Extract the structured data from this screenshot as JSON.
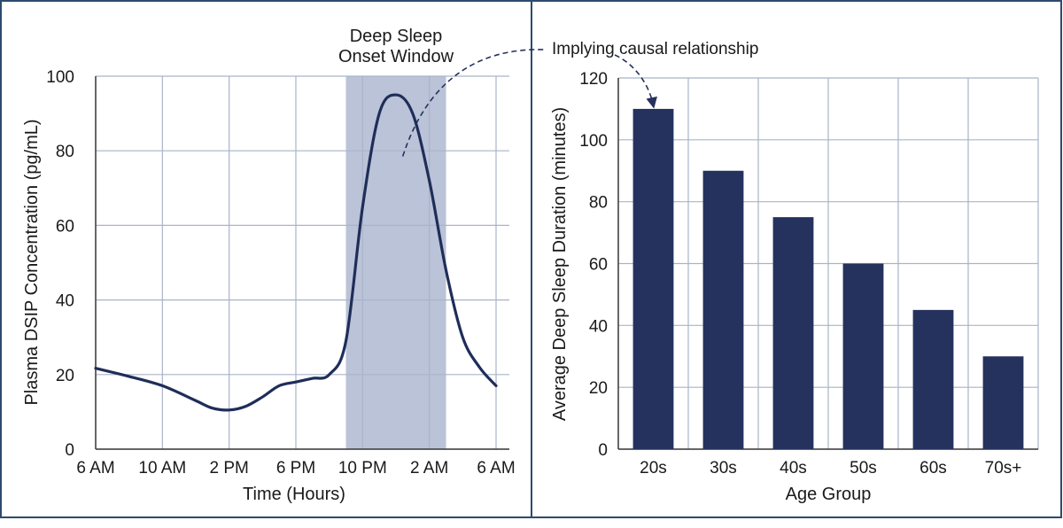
{
  "annotation": {
    "text": "Implying causal relationship",
    "color": "#25325e"
  },
  "chart_data": [
    {
      "type": "line",
      "title": "",
      "xlabel": "Time (Hours)",
      "ylabel": "Plasma DSIP Concentration (pg/mL)",
      "x_tick_labels": [
        "6 AM",
        "10 AM",
        "2 PM",
        "6 PM",
        "10 PM",
        "2 AM",
        "6 AM"
      ],
      "x_unit": "hours since 6 AM",
      "xlim": [
        0,
        24
      ],
      "ylim": [
        0,
        100
      ],
      "y_ticks": [
        0,
        20,
        40,
        60,
        80,
        100
      ],
      "grid": true,
      "shaded_region": {
        "label": "Deep Sleep Onset Window",
        "x_start": 15,
        "x_end": 21,
        "color": "#b3bcd3"
      },
      "series": [
        {
          "color": "#1f2d59",
          "x": [
            0,
            2,
            4,
            6,
            7,
            8,
            9,
            10,
            11,
            12,
            13,
            14,
            15,
            16,
            17,
            18,
            19,
            20,
            21,
            22,
            23,
            24
          ],
          "y": [
            21.7,
            19.5,
            17,
            13,
            11,
            10.5,
            11.5,
            14,
            17,
            18,
            19,
            20,
            29,
            65,
            90,
            95,
            90,
            72,
            48,
            30,
            22,
            17
          ]
        }
      ]
    },
    {
      "type": "bar",
      "title": "",
      "xlabel": "Age Group",
      "ylabel": "Average Deep Sleep Duration (minutes)",
      "categories": [
        "20s",
        "30s",
        "40s",
        "50s",
        "60s",
        "70s+"
      ],
      "values": [
        110,
        90,
        75,
        60,
        45,
        30
      ],
      "ylim": [
        0,
        120
      ],
      "y_ticks": [
        0,
        20,
        40,
        60,
        80,
        100,
        120
      ],
      "grid": true,
      "bar_color": "#25325e"
    }
  ],
  "colors": {
    "frame": "#2e4a6e",
    "grid": "#a9b4c8",
    "axis": "#3a3a3a"
  }
}
